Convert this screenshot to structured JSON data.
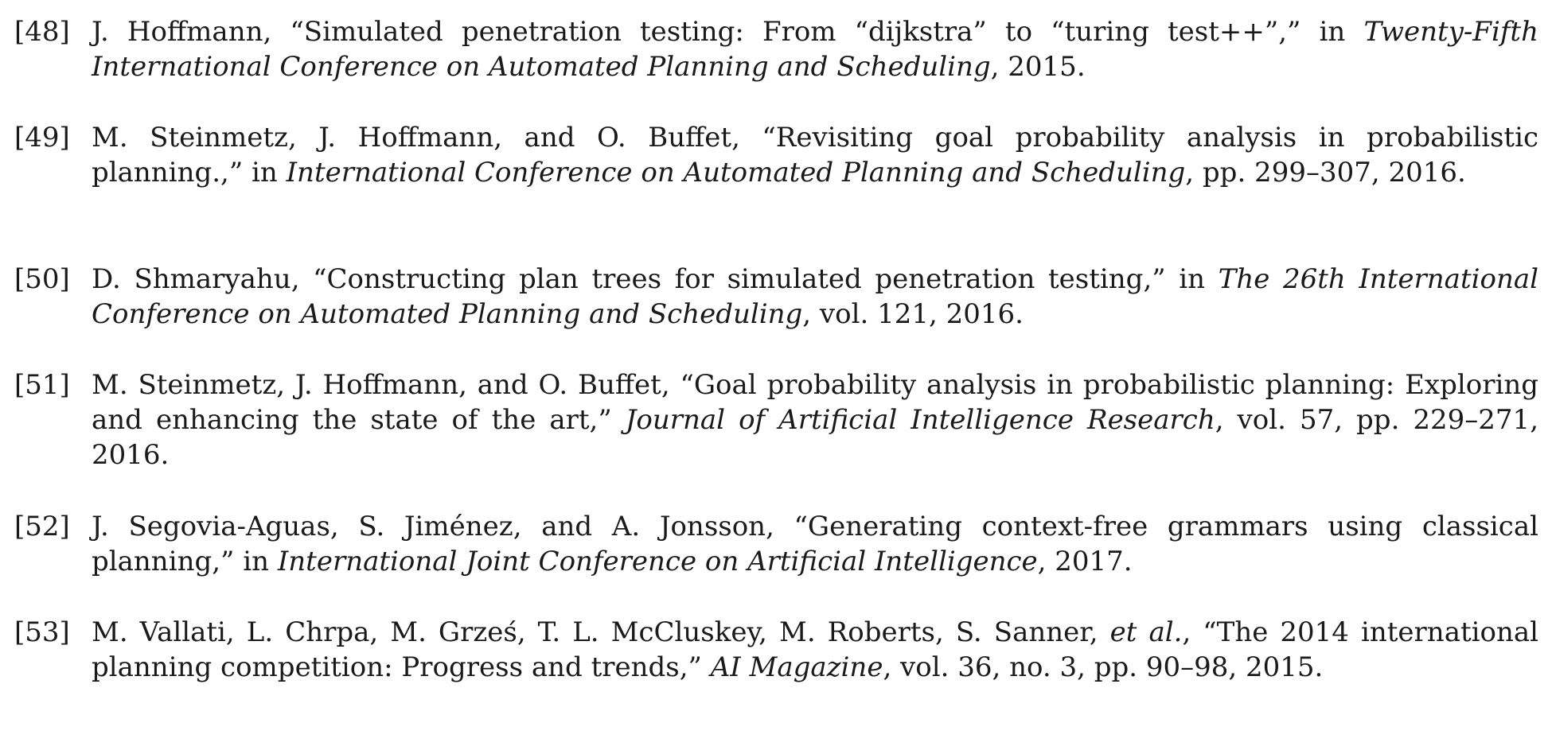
{
  "references": [
    {
      "number": "[48]",
      "before": "J. Hoffmann, “Simulated penetration testing: From “dijkstra” to “turing test++”,” in ",
      "venue": "Twenty-Fifth International Conference on Automated Planning and Scheduling",
      "after": ", 2015."
    },
    {
      "number": "[49]",
      "before": "M. Steinmetz, J. Hoffmann, and O. Buffet, “Revisiting goal probability analysis in probabilistic planning.,” in ",
      "venue": "International Conference on Automated Planning and Scheduling",
      "after": ", pp. 299–307, 2016."
    },
    {
      "number": "[50]",
      "before": "D. Shmaryahu, “Constructing plan trees for simulated penetration testing,” in ",
      "venue": "The 26th International Conference on Automated Planning and Scheduling",
      "after": ", vol. 121, 2016."
    },
    {
      "number": "[51]",
      "before": "M. Steinmetz, J. Hoffmann, and O. Buffet, “Goal probability analysis in probabilistic planning: Exploring and enhancing the state of the art,” ",
      "venue": "Journal of Artificial Intelligence Research",
      "after": ", vol. 57, pp. 229–271, 2016."
    },
    {
      "number": "[52]",
      "before": "J. Segovia-Aguas, S. Jiménez, and A. Jonsson, “Generating context-free grammars using classical planning,” in ",
      "venue": "International Joint Conference on Artificial Intelligence",
      "after": ", 2017."
    },
    {
      "number": "[53]",
      "before": "M. Vallati, L. Chrpa, M. Grześ, T. L. McCluskey, M. Roberts, S. Sanner, ",
      "etal": "et al.",
      "mid": ", “The 2014 international planning competition: Progress and trends,” ",
      "venue": "AI Magazine",
      "after": ", vol. 36, no. 3, pp. 90–98, 2015."
    }
  ]
}
